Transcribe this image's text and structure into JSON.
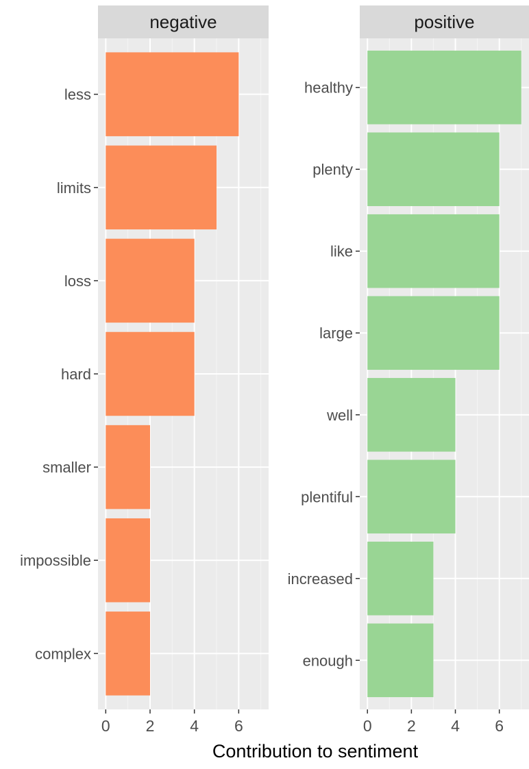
{
  "chart_data": {
    "type": "bar",
    "orientation": "horizontal",
    "facet_type": "faceted horizontal bar chart",
    "xlabel": "Contribution to sentiment",
    "ylabel": "",
    "title": "",
    "x_ticks": [
      0,
      2,
      4,
      6
    ],
    "grid": true,
    "legend": "none",
    "panels": [
      {
        "label": "negative",
        "color": "#FC8D59",
        "xlim": [
          0,
          7
        ],
        "categories": [
          "less",
          "limits",
          "loss",
          "hard",
          "smaller",
          "impossible",
          "complex"
        ],
        "values": [
          6,
          5,
          4,
          4,
          2,
          2,
          2
        ]
      },
      {
        "label": "positive",
        "color": "#99D594",
        "xlim": [
          0,
          7
        ],
        "categories": [
          "healthy",
          "plenty",
          "like",
          "large",
          "well",
          "plentiful",
          "increased",
          "enough"
        ],
        "values": [
          7,
          6,
          6,
          6,
          4,
          4,
          3,
          3
        ]
      }
    ],
    "colors": {
      "panel_background": "#EBEBEB",
      "strip_background": "#D9D9D9",
      "grid_major": "#FFFFFF",
      "grid_minor": "#F5F5F5",
      "text": "#4D4D4D",
      "axis_title": "#000000"
    }
  }
}
